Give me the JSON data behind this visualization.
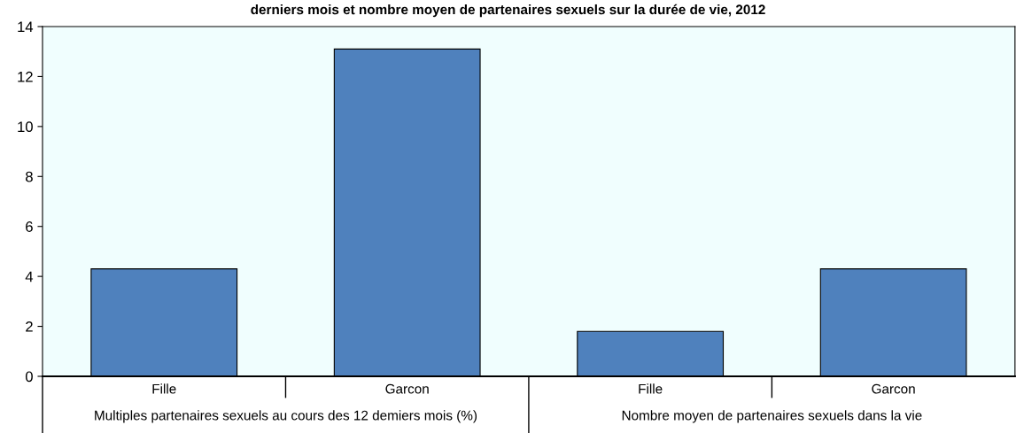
{
  "chart_data": {
    "type": "bar",
    "title": "derniers mois et nombre moyen de partenaires sexuels sur la durée de vie, 2012",
    "categories": [
      "Fille",
      "Garcon",
      "Fille",
      "Garcon"
    ],
    "series": [
      {
        "color": "#4f81bd",
        "values": [
          4.3,
          13.1,
          1.8,
          4.3
        ]
      }
    ],
    "ylim": [
      0,
      14
    ],
    "yticks": [
      0,
      2,
      4,
      6,
      8,
      10,
      12,
      14
    ],
    "grid": false,
    "legend": false,
    "annotations": [
      "Multiples partenaires sexuels au cours des 12 demiers mois (%)",
      "Nombre moyen de partenaires sexuels dans la vie"
    ]
  }
}
